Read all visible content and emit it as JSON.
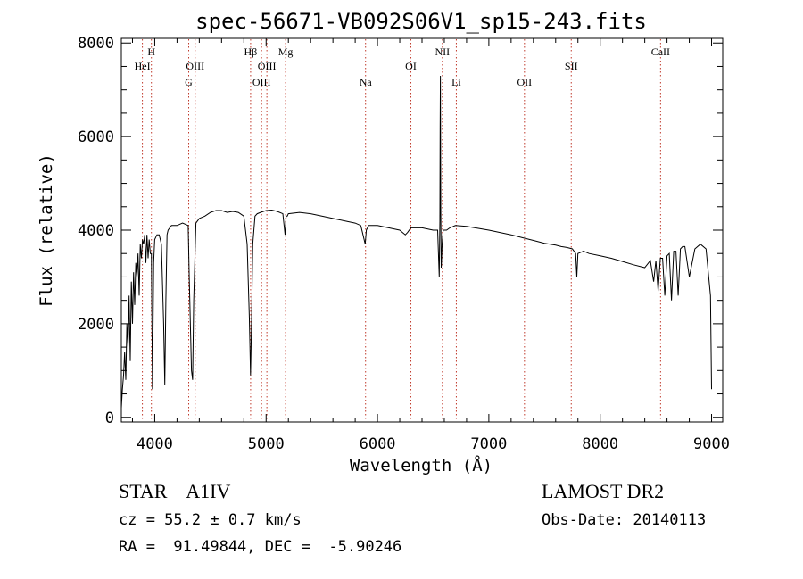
{
  "chart_data": {
    "type": "line",
    "title": "spec-56671-VB092S06V1_sp15-243.fits",
    "xlabel": "Wavelength (Å)",
    "ylabel": "Flux (relative)",
    "xlim": [
      3700,
      9100
    ],
    "ylim": [
      -100,
      8100
    ],
    "x_ticks": [
      4000,
      5000,
      6000,
      7000,
      8000,
      9000
    ],
    "x_tick_labels": [
      "4000",
      "5000",
      "6000",
      "7000",
      "8000",
      "9000"
    ],
    "y_ticks": [
      0,
      2000,
      4000,
      6000,
      8000
    ],
    "y_tick_labels": [
      "0",
      "2000",
      "4000",
      "6000",
      "8000"
    ],
    "grid": false,
    "series": [
      {
        "x": [
          3700,
          3710,
          3720,
          3730,
          3740,
          3750,
          3760,
          3770,
          3780,
          3790,
          3800,
          3810,
          3820,
          3830,
          3840,
          3850,
          3860,
          3870,
          3880,
          3890,
          3900,
          3910,
          3920,
          3930,
          3940,
          3950,
          3960,
          3970,
          3980,
          3990,
          4000,
          4020,
          4040,
          4060,
          4080,
          4090,
          4100,
          4110,
          4120,
          4150,
          4200,
          4250,
          4300,
          4310,
          4330,
          4340,
          4350,
          4370,
          4400,
          4450,
          4500,
          4550,
          4600,
          4650,
          4700,
          4750,
          4800,
          4830,
          4850,
          4860,
          4870,
          4880,
          4900,
          4920,
          4950,
          5000,
          5050,
          5100,
          5150,
          5170,
          5180,
          5190,
          5200,
          5300,
          5400,
          5500,
          5600,
          5700,
          5800,
          5850,
          5880,
          5890,
          5900,
          5920,
          6000,
          6100,
          6200,
          6250,
          6270,
          6300,
          6400,
          6500,
          6540,
          6555,
          6560,
          6563,
          6565,
          6568,
          6572,
          6575,
          6580,
          6590,
          6620,
          6650,
          6700,
          6800,
          6900,
          7000,
          7100,
          7200,
          7300,
          7400,
          7500,
          7600,
          7650,
          7700,
          7750,
          7780,
          7790,
          7800,
          7850,
          7900,
          8000,
          8100,
          8200,
          8300,
          8400,
          8450,
          8480,
          8500,
          8520,
          8540,
          8560,
          8580,
          8600,
          8620,
          8640,
          8660,
          8680,
          8700,
          8720,
          8740,
          8760,
          8800,
          8850,
          8900,
          8950,
          8990,
          9000
        ],
        "y": [
          200,
          600,
          900,
          1400,
          800,
          2000,
          1500,
          2600,
          1200,
          2900,
          2000,
          3100,
          2400,
          3300,
          3000,
          3500,
          2600,
          3700,
          3400,
          3800,
          3700,
          3900,
          3300,
          3900,
          3400,
          3800,
          3500,
          3500,
          600,
          3300,
          3800,
          3900,
          3900,
          3700,
          2000,
          700,
          2500,
          3900,
          4000,
          4100,
          4100,
          4150,
          4100,
          3000,
          1000,
          800,
          2500,
          4150,
          4250,
          4300,
          4380,
          4420,
          4420,
          4380,
          4400,
          4380,
          4300,
          3700,
          2100,
          900,
          2100,
          3700,
          4300,
          4350,
          4380,
          4420,
          4430,
          4400,
          4350,
          3900,
          4300,
          4300,
          4350,
          4380,
          4350,
          4300,
          4250,
          4200,
          4150,
          4100,
          3800,
          3700,
          4000,
          4100,
          4100,
          4050,
          4000,
          3900,
          3950,
          4050,
          4050,
          4000,
          4000,
          3000,
          4200,
          6200,
          7300,
          4400,
          3200,
          3300,
          3700,
          4000,
          4000,
          4050,
          4100,
          4080,
          4040,
          4000,
          3950,
          3900,
          3840,
          3780,
          3720,
          3680,
          3650,
          3630,
          3600,
          3500,
          3000,
          3500,
          3550,
          3500,
          3450,
          3400,
          3330,
          3260,
          3200,
          3350,
          2900,
          3350,
          2700,
          3400,
          3400,
          2600,
          3450,
          3500,
          2500,
          3550,
          3550,
          2600,
          3600,
          3650,
          3650,
          3000,
          3600,
          3700,
          3600,
          2600,
          600
        ]
      }
    ],
    "line_markers": [
      {
        "label": "HeI",
        "wavelength": 3889,
        "row": 2
      },
      {
        "label": "H",
        "wavelength": 3970,
        "row": 1
      },
      {
        "label": "G",
        "wavelength": 4305,
        "row": 3
      },
      {
        "label": "OIII",
        "wavelength": 4363,
        "row": 2
      },
      {
        "label": "Hβ",
        "wavelength": 4861,
        "row": 1
      },
      {
        "label": "OIII",
        "wavelength": 4959,
        "row": 3
      },
      {
        "label": "OIII",
        "wavelength": 5007,
        "row": 2
      },
      {
        "label": "Mg",
        "wavelength": 5175,
        "row": 1
      },
      {
        "label": "Na",
        "wavelength": 5893,
        "row": 3
      },
      {
        "label": "OI",
        "wavelength": 6300,
        "row": 2
      },
      {
        "label": "NII",
        "wavelength": 6583,
        "row": 1
      },
      {
        "label": "Li",
        "wavelength": 6708,
        "row": 3
      },
      {
        "label": "OII",
        "wavelength": 7320,
        "row": 3
      },
      {
        "label": "SII",
        "wavelength": 7740,
        "row": 2
      },
      {
        "label": "CaII",
        "wavelength": 8542,
        "row": 1
      }
    ],
    "colors": {
      "spectrum": "#000000",
      "markers": "#c0392b",
      "axes": "#000000"
    }
  },
  "info": {
    "object_class": "STAR",
    "subclass": "A1IV",
    "survey": "LAMOST DR2",
    "redshift_line": "cz = 55.2 ± 0.7 km/s",
    "obs_date": "Obs-Date: 20140113",
    "coords": "RA =  91.49844, DEC =  -5.90246"
  }
}
